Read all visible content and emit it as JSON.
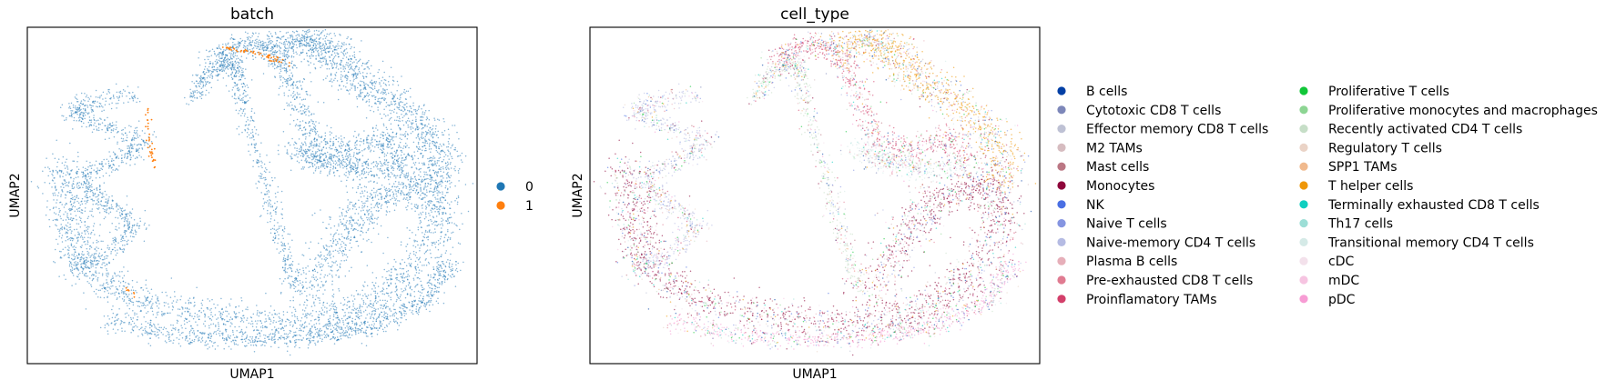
{
  "colors": {
    "batch_0": "#1f77b4",
    "batch_1": "#ff7f0e",
    "frame": "#000000"
  },
  "chart_data": [
    {
      "type": "scatter",
      "title": "batch",
      "xlabel": "UMAP1",
      "ylabel": "UMAP2",
      "xticks": [],
      "yticks": [],
      "grid": false,
      "legend_position": "right",
      "legend": [
        {
          "label": "0",
          "color": "#1f77b4"
        },
        {
          "label": "1",
          "color": "#ff7f0e"
        }
      ]
    },
    {
      "type": "scatter",
      "title": "cell_type",
      "xlabel": "UMAP1",
      "ylabel": "UMAP2",
      "xticks": [],
      "yticks": [],
      "grid": false,
      "legend_position": "right",
      "legend": [
        {
          "label": "B cells",
          "color": "#023fa5"
        },
        {
          "label": "Cytotoxic CD8 T cells",
          "color": "#7d87b9"
        },
        {
          "label": "Effector memory CD8 T cells",
          "color": "#bec1d4"
        },
        {
          "label": "M2 TAMs",
          "color": "#d6bcc0"
        },
        {
          "label": "Mast cells",
          "color": "#bb7784"
        },
        {
          "label": "Monocytes",
          "color": "#8e063b"
        },
        {
          "label": "NK",
          "color": "#4a6fe3"
        },
        {
          "label": "Naive T cells",
          "color": "#8595e1"
        },
        {
          "label": "Naive-memory CD4 T cells",
          "color": "#b5bbe3"
        },
        {
          "label": "Plasma B cells",
          "color": "#e6afb9"
        },
        {
          "label": "Pre-exhausted CD8 T cells",
          "color": "#e07b91"
        },
        {
          "label": "Proinflamatory TAMs",
          "color": "#d33f6a"
        },
        {
          "label": "Proliferative T cells",
          "color": "#11c638"
        },
        {
          "label": "Proliferative monocytes and macrophages",
          "color": "#8dd593"
        },
        {
          "label": "Recently activated CD4 T cells",
          "color": "#c6dec7"
        },
        {
          "label": "Regulatory T cells",
          "color": "#ead3c6"
        },
        {
          "label": "SPP1 TAMs",
          "color": "#f0b98d"
        },
        {
          "label": "T helper cells",
          "color": "#ef9708"
        },
        {
          "label": "Terminally exhausted CD8 T cells",
          "color": "#0fcfc0"
        },
        {
          "label": "Th17 cells",
          "color": "#9cded6"
        },
        {
          "label": "Transitional memory CD4 T cells",
          "color": "#d5eae7"
        },
        {
          "label": "cDC",
          "color": "#f3e1eb"
        },
        {
          "label": "mDC",
          "color": "#f6c4e1"
        },
        {
          "label": "pDC",
          "color": "#f79cd4"
        }
      ]
    }
  ]
}
